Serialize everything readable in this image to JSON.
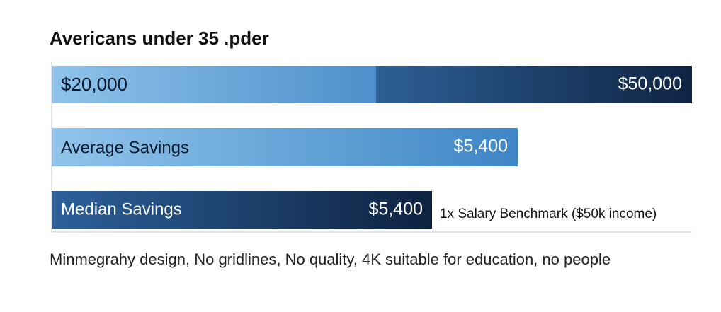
{
  "header": {
    "title": "Avericans under 35 .pder"
  },
  "bars": [
    {
      "left_label": "$20,000",
      "right_label": "$50,000"
    },
    {
      "label": "Average Savings",
      "value_label": "$5,400"
    },
    {
      "label": "Median Savings",
      "value_label": "$5,400"
    }
  ],
  "benchmark_note": "1x Salary Benchmark ($50k income)",
  "footer": "Minmegrahy design, No gridlines, No quality, 4K suitable for education, no people"
}
